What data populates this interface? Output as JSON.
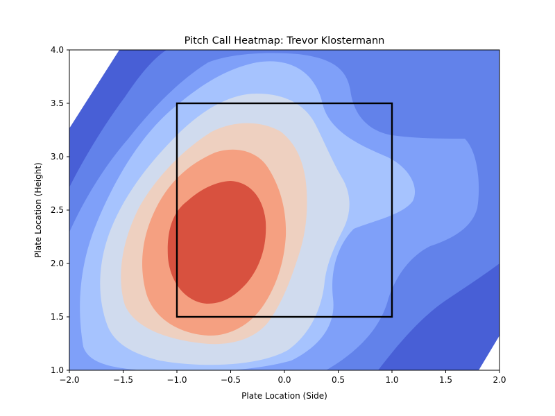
{
  "chart_data": {
    "type": "heatmap",
    "subtype": "filled-contour-density",
    "title": "Pitch Call Heatmap: Trevor Klostermann",
    "xlabel": "Plate Location (Side)",
    "ylabel": "Plate Location (Height)",
    "xlim": [
      -2.0,
      2.0
    ],
    "ylim": [
      1.0,
      4.0
    ],
    "xticks": [
      -2.0,
      -1.5,
      -1.0,
      -0.5,
      0.0,
      0.5,
      1.0,
      1.5,
      2.0
    ],
    "xtick_labels": [
      "−2.0",
      "−1.5",
      "−1.0",
      "−0.5",
      "0.0",
      "0.5",
      "1.0",
      "1.5",
      "2.0"
    ],
    "yticks": [
      1.0,
      1.5,
      2.0,
      2.5,
      3.0,
      3.5,
      4.0
    ],
    "ytick_labels": [
      "1.0",
      "1.5",
      "2.0",
      "2.5",
      "3.0",
      "3.5",
      "4.0"
    ],
    "colormap": "coolwarm",
    "level_colors": [
      "#ffffff",
      "#485fd6",
      "#6282ea",
      "#7fa0f9",
      "#a6c3fe",
      "#d0dbee",
      "#eed0c0",
      "#f5a081",
      "#d8513f"
    ],
    "density_peak": {
      "x": -0.6,
      "y": 2.2
    },
    "strike_zone": {
      "x": [
        -1.0,
        1.0
      ],
      "y": [
        1.5,
        3.5
      ],
      "color": "#000000"
    },
    "grid": false,
    "legend": "none"
  }
}
